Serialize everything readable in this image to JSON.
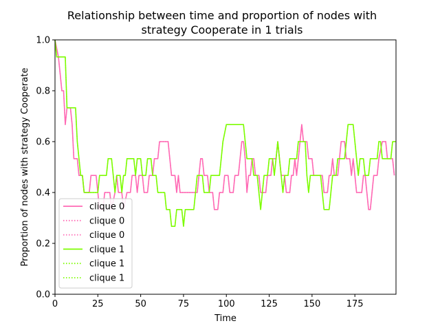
{
  "chart_data": {
    "type": "line",
    "title_lines": [
      "Relationship between time and proportion of nodes with",
      "strategy Cooperate in 1 trials"
    ],
    "xlabel": "Time",
    "ylabel": "Proportion of nodes with strategy Cooperate",
    "xlim": [
      0,
      199
    ],
    "ylim": [
      0.0,
      1.0
    ],
    "xticks": [
      0,
      25,
      50,
      75,
      100,
      125,
      150,
      175
    ],
    "yticks": [
      0.0,
      0.2,
      0.4,
      0.6,
      0.8,
      1.0
    ],
    "ytick_labels": [
      "0.0",
      "0.2",
      "0.4",
      "0.6",
      "0.8",
      "1.0"
    ],
    "grid": false,
    "legend_position": "lower-left",
    "legend": [
      {
        "label": "clique 0",
        "color": "#ff69b4",
        "style": "solid"
      },
      {
        "label": "clique 0",
        "color": "#ff69b4",
        "style": "dotted"
      },
      {
        "label": "clique 0",
        "color": "#ff69b4",
        "style": "dotted"
      },
      {
        "label": "clique 1",
        "color": "#7cfc00",
        "style": "solid"
      },
      {
        "label": "clique 1",
        "color": "#7cfc00",
        "style": "dotted"
      },
      {
        "label": "clique 1",
        "color": "#7cfc00",
        "style": "dotted"
      }
    ],
    "series": [
      {
        "color": "#ff69b4",
        "points": [
          [
            0,
            1.0
          ],
          [
            2,
            0.933
          ],
          [
            3,
            0.867
          ],
          [
            4,
            0.8
          ],
          [
            5,
            0.8
          ],
          [
            6,
            0.667
          ],
          [
            7,
            0.733
          ],
          [
            9,
            0.733
          ],
          [
            10,
            0.667
          ],
          [
            11,
            0.533
          ],
          [
            13,
            0.533
          ],
          [
            14,
            0.467
          ],
          [
            16,
            0.467
          ],
          [
            17,
            0.4
          ],
          [
            20,
            0.4
          ],
          [
            21,
            0.467
          ],
          [
            24,
            0.467
          ],
          [
            25,
            0.4
          ],
          [
            26,
            0.333
          ],
          [
            28,
            0.333
          ],
          [
            29,
            0.4
          ],
          [
            32,
            0.4
          ],
          [
            33,
            0.333
          ],
          [
            35,
            0.4
          ],
          [
            36,
            0.467
          ],
          [
            37,
            0.4
          ],
          [
            39,
            0.4
          ],
          [
            40,
            0.333
          ],
          [
            42,
            0.4
          ],
          [
            44,
            0.4
          ],
          [
            45,
            0.467
          ],
          [
            47,
            0.467
          ],
          [
            48,
            0.4
          ],
          [
            49,
            0.467
          ],
          [
            51,
            0.467
          ],
          [
            52,
            0.4
          ],
          [
            54,
            0.4
          ],
          [
            55,
            0.467
          ],
          [
            57,
            0.467
          ],
          [
            58,
            0.533
          ],
          [
            60,
            0.533
          ],
          [
            61,
            0.6
          ],
          [
            66,
            0.6
          ],
          [
            67,
            0.533
          ],
          [
            68,
            0.467
          ],
          [
            70,
            0.467
          ],
          [
            71,
            0.4
          ],
          [
            72,
            0.467
          ],
          [
            73,
            0.4
          ],
          [
            76,
            0.4
          ],
          [
            77,
            0.4
          ],
          [
            83,
            0.4
          ],
          [
            84,
            0.467
          ],
          [
            85,
            0.533
          ],
          [
            86,
            0.533
          ],
          [
            87,
            0.467
          ],
          [
            89,
            0.467
          ],
          [
            90,
            0.4
          ],
          [
            92,
            0.4
          ],
          [
            93,
            0.333
          ],
          [
            95,
            0.333
          ],
          [
            96,
            0.4
          ],
          [
            98,
            0.4
          ],
          [
            99,
            0.467
          ],
          [
            101,
            0.467
          ],
          [
            102,
            0.4
          ],
          [
            104,
            0.4
          ],
          [
            105,
            0.467
          ],
          [
            107,
            0.467
          ],
          [
            108,
            0.533
          ],
          [
            109,
            0.6
          ],
          [
            110,
            0.6
          ],
          [
            111,
            0.533
          ],
          [
            112,
            0.4
          ],
          [
            113,
            0.467
          ],
          [
            114,
            0.467
          ],
          [
            115,
            0.533
          ],
          [
            116,
            0.533
          ],
          [
            117,
            0.467
          ],
          [
            119,
            0.467
          ],
          [
            120,
            0.4
          ],
          [
            123,
            0.4
          ],
          [
            124,
            0.467
          ],
          [
            126,
            0.467
          ],
          [
            127,
            0.533
          ],
          [
            129,
            0.533
          ],
          [
            130,
            0.6
          ],
          [
            131,
            0.533
          ],
          [
            132,
            0.467
          ],
          [
            134,
            0.467
          ],
          [
            135,
            0.4
          ],
          [
            137,
            0.4
          ],
          [
            138,
            0.467
          ],
          [
            139,
            0.467
          ],
          [
            140,
            0.533
          ],
          [
            141,
            0.467
          ],
          [
            142,
            0.533
          ],
          [
            143,
            0.6
          ],
          [
            144,
            0.667
          ],
          [
            145,
            0.6
          ],
          [
            147,
            0.6
          ],
          [
            148,
            0.533
          ],
          [
            150,
            0.533
          ],
          [
            151,
            0.467
          ],
          [
            156,
            0.467
          ],
          [
            157,
            0.4
          ],
          [
            159,
            0.4
          ],
          [
            160,
            0.467
          ],
          [
            161,
            0.467
          ],
          [
            162,
            0.533
          ],
          [
            163,
            0.467
          ],
          [
            165,
            0.467
          ],
          [
            166,
            0.533
          ],
          [
            167,
            0.6
          ],
          [
            169,
            0.6
          ],
          [
            170,
            0.533
          ],
          [
            172,
            0.533
          ],
          [
            173,
            0.467
          ],
          [
            174,
            0.533
          ],
          [
            175,
            0.467
          ],
          [
            176,
            0.4
          ],
          [
            179,
            0.4
          ],
          [
            180,
            0.467
          ],
          [
            181,
            0.467
          ],
          [
            182,
            0.4
          ],
          [
            183,
            0.333
          ],
          [
            184,
            0.333
          ],
          [
            185,
            0.4
          ],
          [
            186,
            0.467
          ],
          [
            188,
            0.467
          ],
          [
            189,
            0.533
          ],
          [
            191,
            0.6
          ],
          [
            193,
            0.6
          ],
          [
            194,
            0.533
          ],
          [
            197,
            0.533
          ],
          [
            198,
            0.467
          ]
        ]
      },
      {
        "color": "#7cfc00",
        "points": [
          [
            0,
            1.0
          ],
          [
            1,
            0.933
          ],
          [
            6,
            0.933
          ],
          [
            7,
            0.733
          ],
          [
            12,
            0.733
          ],
          [
            13,
            0.6
          ],
          [
            14,
            0.533
          ],
          [
            15,
            0.467
          ],
          [
            16,
            0.467
          ],
          [
            17,
            0.4
          ],
          [
            24,
            0.4
          ],
          [
            25,
            0.4
          ],
          [
            26,
            0.467
          ],
          [
            30,
            0.467
          ],
          [
            31,
            0.533
          ],
          [
            33,
            0.533
          ],
          [
            34,
            0.467
          ],
          [
            35,
            0.4
          ],
          [
            36,
            0.467
          ],
          [
            38,
            0.467
          ],
          [
            39,
            0.4
          ],
          [
            40,
            0.467
          ],
          [
            41,
            0.467
          ],
          [
            42,
            0.533
          ],
          [
            46,
            0.533
          ],
          [
            47,
            0.467
          ],
          [
            48,
            0.533
          ],
          [
            50,
            0.533
          ],
          [
            51,
            0.467
          ],
          [
            53,
            0.467
          ],
          [
            54,
            0.533
          ],
          [
            56,
            0.533
          ],
          [
            57,
            0.467
          ],
          [
            59,
            0.467
          ],
          [
            60,
            0.4
          ],
          [
            64,
            0.4
          ],
          [
            65,
            0.333
          ],
          [
            67,
            0.333
          ],
          [
            68,
            0.267
          ],
          [
            70,
            0.267
          ],
          [
            71,
            0.333
          ],
          [
            74,
            0.333
          ],
          [
            75,
            0.267
          ],
          [
            76,
            0.333
          ],
          [
            81,
            0.333
          ],
          [
            82,
            0.4
          ],
          [
            83,
            0.467
          ],
          [
            86,
            0.467
          ],
          [
            87,
            0.4
          ],
          [
            90,
            0.4
          ],
          [
            91,
            0.467
          ],
          [
            96,
            0.467
          ],
          [
            97,
            0.533
          ],
          [
            98,
            0.6
          ],
          [
            100,
            0.667
          ],
          [
            110,
            0.667
          ],
          [
            111,
            0.6
          ],
          [
            112,
            0.533
          ],
          [
            115,
            0.533
          ],
          [
            116,
            0.467
          ],
          [
            118,
            0.467
          ],
          [
            119,
            0.4
          ],
          [
            120,
            0.333
          ],
          [
            121,
            0.4
          ],
          [
            122,
            0.467
          ],
          [
            124,
            0.467
          ],
          [
            125,
            0.533
          ],
          [
            127,
            0.533
          ],
          [
            128,
            0.467
          ],
          [
            129,
            0.533
          ],
          [
            130,
            0.6
          ],
          [
            131,
            0.533
          ],
          [
            132,
            0.467
          ],
          [
            133,
            0.4
          ],
          [
            134,
            0.467
          ],
          [
            136,
            0.467
          ],
          [
            137,
            0.533
          ],
          [
            141,
            0.533
          ],
          [
            142,
            0.6
          ],
          [
            146,
            0.6
          ],
          [
            147,
            0.467
          ],
          [
            148,
            0.4
          ],
          [
            149,
            0.467
          ],
          [
            155,
            0.467
          ],
          [
            156,
            0.4
          ],
          [
            157,
            0.333
          ],
          [
            160,
            0.333
          ],
          [
            161,
            0.4
          ],
          [
            162,
            0.467
          ],
          [
            164,
            0.467
          ],
          [
            165,
            0.533
          ],
          [
            169,
            0.533
          ],
          [
            170,
            0.6
          ],
          [
            171,
            0.667
          ],
          [
            174,
            0.667
          ],
          [
            175,
            0.6
          ],
          [
            176,
            0.533
          ],
          [
            177,
            0.467
          ],
          [
            178,
            0.533
          ],
          [
            180,
            0.533
          ],
          [
            181,
            0.467
          ],
          [
            183,
            0.467
          ],
          [
            184,
            0.533
          ],
          [
            188,
            0.533
          ],
          [
            189,
            0.6
          ],
          [
            190,
            0.6
          ],
          [
            191,
            0.533
          ],
          [
            196,
            0.533
          ],
          [
            197,
            0.6
          ],
          [
            199,
            0.6
          ]
        ]
      }
    ]
  }
}
